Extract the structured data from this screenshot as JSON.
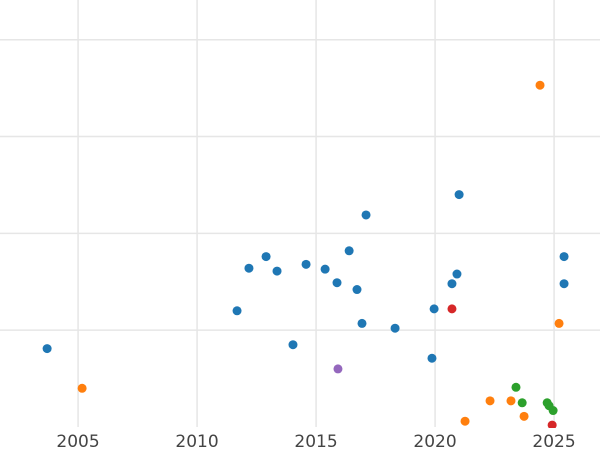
{
  "chart_data": {
    "type": "scatter",
    "title": "",
    "xlabel": "",
    "ylabel": "",
    "xlim": [
      2001.72,
      2026.93
    ],
    "ylim": [
      0,
      4.41
    ],
    "grid": true,
    "x_ticks": [
      2005,
      2010,
      2015,
      2020,
      2025
    ],
    "x_tick_labels": [
      "2005",
      "2010",
      "2015",
      "2020",
      "2025"
    ],
    "y_gridlines": [
      1,
      2,
      3,
      4
    ],
    "series": [
      {
        "name": "blue",
        "color": "#1f77b4",
        "points": [
          [
            2003.7,
            0.81
          ],
          [
            2011.68,
            1.2
          ],
          [
            2012.18,
            1.64
          ],
          [
            2012.9,
            1.76
          ],
          [
            2013.36,
            1.61
          ],
          [
            2014.03,
            0.85
          ],
          [
            2014.58,
            1.68
          ],
          [
            2015.38,
            1.63
          ],
          [
            2015.88,
            1.49
          ],
          [
            2016.39,
            1.82
          ],
          [
            2016.72,
            1.42
          ],
          [
            2016.93,
            1.07
          ],
          [
            2017.1,
            2.19
          ],
          [
            2018.32,
            1.02
          ],
          [
            2019.87,
            0.71
          ],
          [
            2019.96,
            1.22
          ],
          [
            2020.71,
            1.48
          ],
          [
            2020.92,
            1.58
          ],
          [
            2021.01,
            2.4
          ],
          [
            2025.42,
            1.76
          ],
          [
            2025.42,
            1.48
          ]
        ]
      },
      {
        "name": "orange",
        "color": "#ff7f0e",
        "points": [
          [
            2005.17,
            0.4
          ],
          [
            2024.41,
            3.53
          ],
          [
            2025.21,
            1.07
          ],
          [
            2021.26,
            0.06
          ],
          [
            2022.31,
            0.27
          ],
          [
            2023.19,
            0.27
          ],
          [
            2023.74,
            0.11
          ]
        ]
      },
      {
        "name": "green",
        "color": "#2ca02c",
        "points": [
          [
            2023.4,
            0.41
          ],
          [
            2023.66,
            0.25
          ],
          [
            2024.71,
            0.25
          ],
          [
            2024.79,
            0.22
          ],
          [
            2024.96,
            0.17
          ]
        ]
      },
      {
        "name": "red",
        "color": "#d62728",
        "points": [
          [
            2020.71,
            1.22
          ],
          [
            2024.92,
            0.02
          ]
        ]
      },
      {
        "name": "purple",
        "color": "#9467bd",
        "points": [
          [
            2015.92,
            0.6
          ]
        ]
      }
    ]
  }
}
